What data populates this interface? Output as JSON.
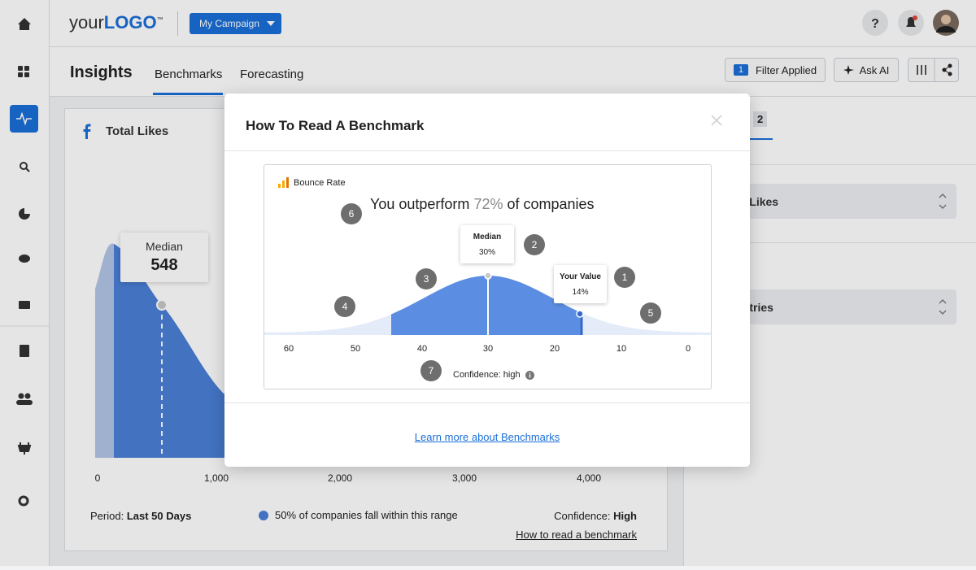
{
  "header": {
    "logo": {
      "prefix": "your",
      "brand": "LOGO",
      "mark": "™"
    },
    "campaign_button": "My Campaign"
  },
  "subheader": {
    "title": "Insights",
    "tabs": [
      "Benchmarks",
      "Forecasting"
    ],
    "filter": {
      "count": "1",
      "label": "Filter Applied"
    },
    "ask_ai": "Ask AI"
  },
  "card": {
    "title": "Total Likes",
    "median": {
      "label": "Median",
      "value": "548"
    },
    "x_axis": [
      "0",
      "1,000",
      "2,000",
      "3,000",
      "4,000"
    ],
    "period": {
      "label": "Period:",
      "value": "Last 50 Days"
    },
    "range_note": "50% of companies fall within this range",
    "confidence": {
      "label": "Confidence:",
      "value": "High"
    },
    "link": "How to read a benchmark"
  },
  "side_panel": {
    "tab": "2",
    "metric": "Total Likes",
    "industry": "Industries"
  },
  "modal": {
    "title": "How To Read A Benchmark",
    "example": {
      "metric": "Bounce Rate",
      "headline": {
        "before": "You outperform",
        "highlight": "72%",
        "after": "of companies"
      },
      "median": {
        "label": "Median",
        "value": "30%"
      },
      "your_value": {
        "label": "Your Value",
        "value": "14%"
      },
      "x_axis": [
        "60",
        "50",
        "40",
        "30",
        "20",
        "10",
        "0"
      ],
      "confidence": "Confidence: high",
      "markers": [
        "1",
        "2",
        "3",
        "4",
        "5",
        "6",
        "7"
      ]
    },
    "link": "Learn more about Benchmarks"
  }
}
